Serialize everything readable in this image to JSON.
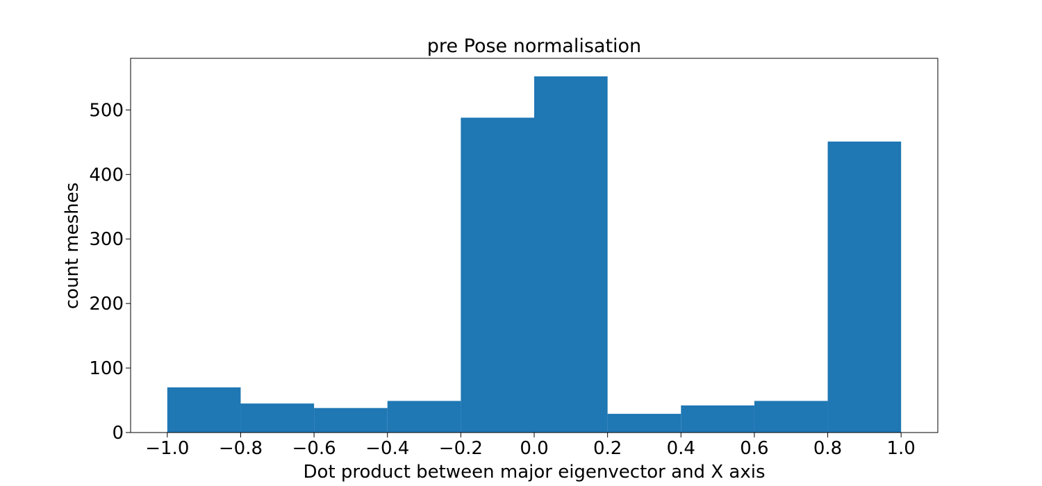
{
  "chart_data": {
    "type": "bar",
    "title": "pre Pose normalisation",
    "xlabel": "Dot product between major eigenvector and X axis",
    "ylabel": "count meshes",
    "bin_edges": [
      -1.0,
      -0.8,
      -0.6,
      -0.4,
      -0.2,
      0.0,
      0.2,
      0.4,
      0.6,
      0.8,
      1.0
    ],
    "values": [
      70,
      45,
      38,
      49,
      488,
      552,
      29,
      42,
      49,
      451
    ],
    "xlim": [
      -1.1,
      1.1
    ],
    "ylim": [
      0,
      580
    ],
    "xticks": [
      -1.0,
      -0.8,
      -0.6,
      -0.4,
      -0.2,
      0.0,
      0.2,
      0.4,
      0.6,
      0.8,
      1.0
    ],
    "xtick_labels": [
      "−1.0",
      "−0.8",
      "−0.6",
      "−0.4",
      "−0.2",
      "0.0",
      "0.2",
      "0.4",
      "0.6",
      "0.8",
      "1.0"
    ],
    "yticks": [
      0,
      100,
      200,
      300,
      400,
      500
    ],
    "ytick_labels": [
      "0",
      "100",
      "200",
      "300",
      "400",
      "500"
    ],
    "bar_color": "#1f77b4",
    "grid": false,
    "legend": false
  }
}
